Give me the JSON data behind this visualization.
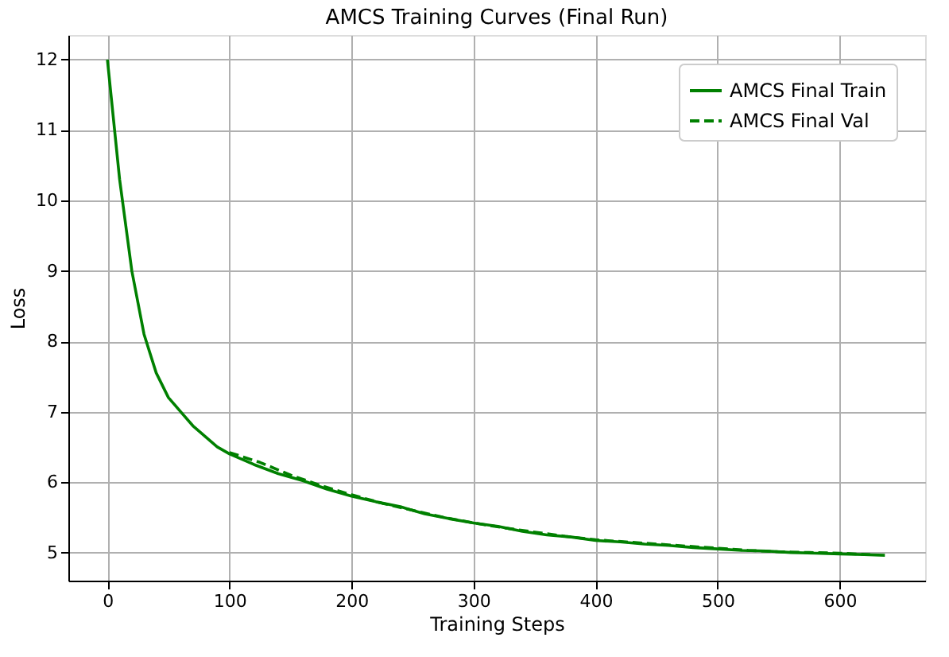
{
  "chart_data": {
    "type": "line",
    "title": "AMCS Training Curves (Final Run)",
    "xlabel": "Training Steps",
    "ylabel": "Loss",
    "xlim": [
      -32,
      670
    ],
    "ylim": [
      4.6,
      12.35
    ],
    "xticks": [
      0,
      100,
      200,
      300,
      400,
      500,
      600
    ],
    "yticks": [
      5,
      6,
      7,
      8,
      9,
      10,
      11,
      12
    ],
    "grid": true,
    "legend": "top right",
    "series": [
      {
        "name": "AMCS Final Train",
        "color": "#008000",
        "line_style": "solid",
        "x": [
          0,
          10,
          20,
          30,
          40,
          50,
          60,
          70,
          80,
          90,
          100,
          120,
          140,
          160,
          180,
          200,
          220,
          240,
          260,
          280,
          300,
          320,
          340,
          360,
          380,
          400,
          420,
          440,
          460,
          480,
          500,
          520,
          540,
          560,
          580,
          600,
          620,
          637
        ],
        "values": [
          12.0,
          10.3,
          9.0,
          8.1,
          7.55,
          7.2,
          7.0,
          6.8,
          6.65,
          6.5,
          6.4,
          6.25,
          6.12,
          6.02,
          5.9,
          5.8,
          5.72,
          5.65,
          5.55,
          5.48,
          5.42,
          5.37,
          5.3,
          5.25,
          5.22,
          5.17,
          5.15,
          5.12,
          5.1,
          5.07,
          5.05,
          5.03,
          5.02,
          5.0,
          4.99,
          4.98,
          4.97,
          4.96
        ]
      },
      {
        "name": "AMCS Final Val",
        "color": "#008000",
        "line_style": "dashed",
        "x": [
          100,
          125,
          150,
          175,
          200,
          225,
          250,
          275,
          300,
          325,
          350,
          375,
          400,
          425,
          450,
          475,
          500,
          525,
          550,
          575,
          600,
          625
        ],
        "values": [
          6.42,
          6.28,
          6.1,
          5.95,
          5.82,
          5.7,
          5.6,
          5.5,
          5.42,
          5.35,
          5.29,
          5.23,
          5.18,
          5.15,
          5.12,
          5.09,
          5.06,
          5.03,
          5.01,
          5.0,
          4.99,
          4.97
        ]
      }
    ]
  }
}
